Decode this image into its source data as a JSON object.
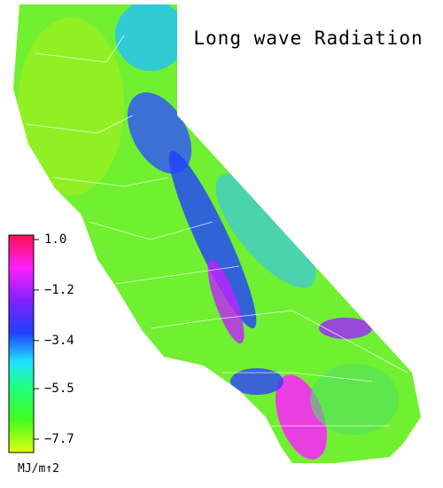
{
  "map": {
    "title": "Long wave Radiation",
    "legend": {
      "unit": "MJ/m↑2",
      "range": [
        -7.7,
        1.0
      ],
      "ticks": [
        {
          "value": 1.0,
          "label": "1.0"
        },
        {
          "value": -1.2,
          "label": "−1.2"
        },
        {
          "value": -3.4,
          "label": "−3.4"
        },
        {
          "value": -5.5,
          "label": "−5.5"
        },
        {
          "value": -7.7,
          "label": "−7.7"
        }
      ]
    }
  }
}
